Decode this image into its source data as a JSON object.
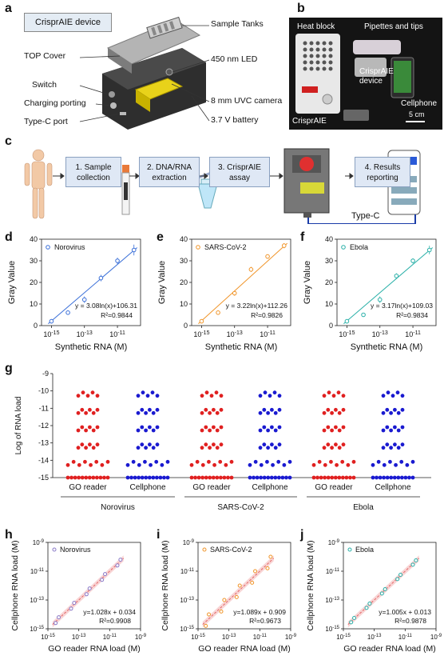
{
  "labels": {
    "a": "a",
    "b": "b",
    "c": "c",
    "d": "d",
    "e": "e",
    "f": "f",
    "g": "g",
    "h": "h",
    "i": "i",
    "j": "j"
  },
  "panel_a": {
    "device_title": "CrisprAIE device",
    "callouts_right": [
      "Sample Tanks",
      "450 nm LED",
      "8 mm UVC camera",
      "3.7 V battery"
    ],
    "callouts_left": [
      "TOP Cover",
      "Switch",
      "Charging porting",
      "Type-C port"
    ],
    "colors": {
      "device": "#3a3a3a",
      "cover": "#9a9a9a",
      "camera": "#e8d21a"
    }
  },
  "panel_b": {
    "labels": [
      "Heat block",
      "Pipettes and tips",
      "CrisprAIE device",
      "Cellphone",
      "CrisprAIE",
      "5 cm"
    ],
    "background": "#111111"
  },
  "panel_c": {
    "steps": [
      "1. Sample collection",
      "2. DNA/RNA extraction",
      "3. CrisprAIE assay",
      "4. Results reporting"
    ],
    "cable_label": "Type-C",
    "step_color": "#dfe8f5"
  },
  "chart_data": [
    {
      "type": "scatter",
      "panel": "d",
      "legend": "Norovirus",
      "color": "#3a6fd8",
      "xlabel": "Synthetic RNA (M)",
      "ylabel": "Gray Value",
      "xscale": "log",
      "xticks": [
        "10-15",
        "10-13",
        "10-11"
      ],
      "yticks": [
        "0",
        "10",
        "20",
        "30",
        "40"
      ],
      "ylim": [
        0,
        40
      ],
      "x": [
        1e-15,
        1e-14,
        1e-13,
        1e-12,
        1e-11,
        1e-10
      ],
      "y": [
        2,
        6,
        12,
        22,
        30,
        35
      ],
      "err": [
        1,
        1,
        1.5,
        1.5,
        1.5,
        2.5
      ],
      "fit": "y = 3.08ln(x)+106.31",
      "r2": "R²=0.9844"
    },
    {
      "type": "scatter",
      "panel": "e",
      "legend": "SARS-CoV-2",
      "color": "#f0952a",
      "xlabel": "Synthetic RNA (M)",
      "ylabel": "Gray Value",
      "xscale": "log",
      "xticks": [
        "10-15",
        "10-13",
        "10-11"
      ],
      "yticks": [
        "0",
        "10",
        "20",
        "30",
        "40"
      ],
      "ylim": [
        0,
        40
      ],
      "x": [
        1e-15,
        1e-14,
        1e-13,
        1e-12,
        1e-11,
        1e-10
      ],
      "y": [
        2,
        6,
        15,
        26,
        32,
        37
      ],
      "err": [
        0.5,
        0.8,
        1.2,
        1.2,
        1,
        1.2
      ],
      "fit": "y = 3.22ln(x)+112.26",
      "r2": "R²=0.9826"
    },
    {
      "type": "scatter",
      "panel": "f",
      "legend": "Ebola",
      "color": "#2ab0a8",
      "xlabel": "Synthetic RNA (M)",
      "ylabel": "Gray Value",
      "xscale": "log",
      "xticks": [
        "10-15",
        "10-13",
        "10-11"
      ],
      "yticks": [
        "0",
        "10",
        "20",
        "30",
        "40"
      ],
      "ylim": [
        0,
        40
      ],
      "x": [
        1e-15,
        1e-14,
        1e-13,
        1e-12,
        1e-11,
        1e-10
      ],
      "y": [
        2,
        5,
        12,
        23,
        30,
        35
      ],
      "err": [
        0.5,
        0.8,
        1.5,
        1.2,
        1.2,
        2
      ],
      "fit": "y = 3.17ln(x)+109.03",
      "r2": "R²=0.9834"
    },
    {
      "type": "scatter",
      "panel": "g",
      "ylabel": "Log of RNA load",
      "yticks": [
        "-10",
        "-11",
        "-12",
        "-13",
        "-14",
        "-15"
      ],
      "yticks_top": "-9",
      "ylim": [
        -15,
        -9
      ],
      "categories": [
        "GO reader",
        "Cellphone",
        "GO reader",
        "Cellphone",
        "GO reader",
        "Cellphone"
      ],
      "groups": [
        "Norovirus",
        "SARS-CoV-2",
        "Ebola"
      ],
      "colors": [
        "#e02020",
        "#1a1ad0"
      ],
      "levels": [
        -10,
        -11,
        -12,
        -13,
        -14,
        -15
      ],
      "counts": [
        5,
        6,
        6,
        6,
        8,
        12
      ]
    },
    {
      "type": "scatter",
      "panel": "h",
      "legend": "Norovirus",
      "color": "#8a7ac8",
      "xlabel": "GO reader RNA load (M)",
      "ylabel": "Cellphone RNA load (M)",
      "xscale": "log",
      "yscale": "log",
      "xticks": [
        "10-15",
        "10-13",
        "10-11",
        "10-9"
      ],
      "yticks": [
        "10-15",
        "10-13",
        "10-11",
        "10-9"
      ],
      "fit": "y=1.028x + 0.034",
      "r2": "R²=0.9908",
      "x": [
        -14.5,
        -14.3,
        -13.5,
        -13.3,
        -12.5,
        -12.3,
        -11.5,
        -11.3,
        -10.5,
        -10.3
      ],
      "y": [
        -14.6,
        -14.2,
        -13.6,
        -13.2,
        -12.6,
        -12.2,
        -11.6,
        -11.2,
        -10.6,
        -10.2
      ]
    },
    {
      "type": "scatter",
      "panel": "i",
      "legend": "SARS-CoV-2",
      "color": "#f0952a",
      "xlabel": "GO reader RNA load (M)",
      "ylabel": "Cellphone RNA load (M)",
      "xscale": "log",
      "yscale": "log",
      "xticks": [
        "10-15",
        "10-13",
        "10-11",
        "10-9"
      ],
      "yticks": [
        "10-15",
        "10-13",
        "10-11",
        "10-9"
      ],
      "fit": "y=1.089x + 0.909",
      "r2": "R²=0.9673",
      "x": [
        -14.5,
        -14.3,
        -13.5,
        -13.3,
        -12.5,
        -12.3,
        -11.5,
        -11.3,
        -10.5,
        -10.3
      ],
      "y": [
        -14.8,
        -14.0,
        -13.8,
        -13.0,
        -12.8,
        -12.0,
        -11.8,
        -11.0,
        -10.8,
        -10.0
      ]
    },
    {
      "type": "scatter",
      "panel": "j",
      "legend": "Ebola",
      "color": "#2ab0a8",
      "xlabel": "GO reader RNA load (M)",
      "ylabel": "Cellphone RNA load (M)",
      "xscale": "log",
      "yscale": "log",
      "xticks": [
        "10-15",
        "10-13",
        "10-11",
        "10-9"
      ],
      "yticks": [
        "10-15",
        "10-13",
        "10-11",
        "10-9"
      ],
      "fit": "y=1.005x + 0.013",
      "r2": "R²=0.9878",
      "x": [
        -14.5,
        -14.3,
        -13.5,
        -13.3,
        -12.5,
        -12.3,
        -11.5,
        -11.3,
        -10.5,
        -10.3
      ],
      "y": [
        -14.55,
        -14.25,
        -13.55,
        -13.25,
        -12.55,
        -12.25,
        -11.55,
        -11.25,
        -10.55,
        -10.25
      ]
    }
  ]
}
